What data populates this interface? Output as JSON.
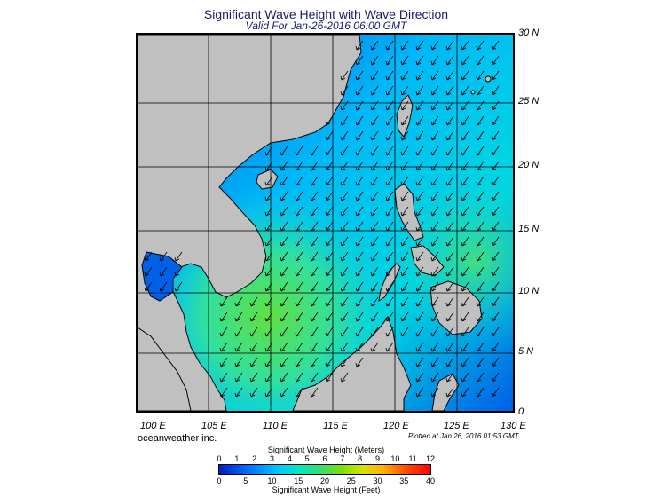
{
  "title": "Significant Wave Height with Wave Direction",
  "subtitle": "Valid For Jan-26-2016 06:00 GMT",
  "lat_labels": [
    "30 N",
    "25 N",
    "20 N",
    "15 N",
    "10 N",
    "5 N",
    "0"
  ],
  "lon_labels": [
    "100 E",
    "105 E",
    "110 E",
    "115 E",
    "120 E",
    "125 E",
    "130 E"
  ],
  "credit": "oceanweather inc.",
  "plotted": "Plotted at Jan 26, 2016 01:53 GMT",
  "legend": {
    "meters_title": "Significant Wave Height (Meters)",
    "feet_title": "Significant Wave Height (Feet)",
    "meters_ticks": [
      "0",
      "1",
      "2",
      "3",
      "4",
      "5",
      "6",
      "7",
      "8",
      "9",
      "10",
      "11",
      "12"
    ],
    "feet_ticks": [
      "0",
      "5",
      "10",
      "15",
      "20",
      "25",
      "30",
      "35",
      "40"
    ]
  },
  "colors": {
    "land": "#c0c0c0",
    "low": "#0030d0",
    "mid": "#00d8f0",
    "high": "#40e060"
  }
}
